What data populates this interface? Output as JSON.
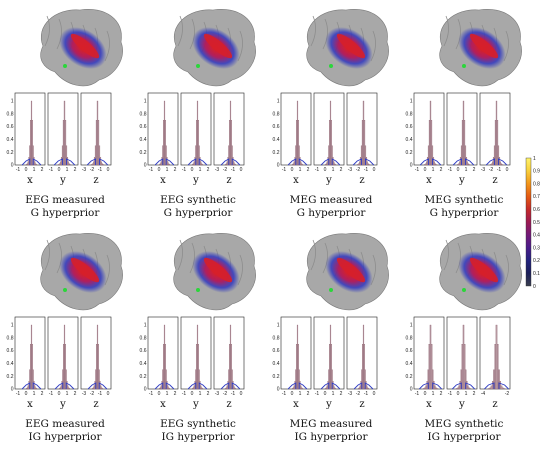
{
  "panels": [
    {
      "caption_line1": "EEG measured",
      "caption_line2": "G hyperprior",
      "xticks": [
        "-1",
        "0",
        "1",
        "2"
      ],
      "yticks": [
        "-1",
        "0",
        "1",
        "2"
      ],
      "zticks": [
        "-3",
        "-2",
        "-1",
        "0"
      ],
      "widths": [
        0.6,
        0.7,
        0.7
      ]
    },
    {
      "caption_line1": "EEG synthetic",
      "caption_line2": "G hyperprior",
      "xticks": [
        "-1",
        "0",
        "1",
        "2"
      ],
      "yticks": [
        "-1",
        "0",
        "1",
        "2"
      ],
      "zticks": [
        "-3",
        "-2",
        "-1",
        "0"
      ],
      "widths": [
        0.6,
        0.6,
        0.6
      ]
    },
    {
      "caption_line1": "MEG measured",
      "caption_line2": "G hyperprior",
      "xticks": [
        "-1",
        "0",
        "1",
        "2"
      ],
      "yticks": [
        "-1",
        "0",
        "1",
        "2"
      ],
      "zticks": [
        "-3",
        "-2",
        "-1",
        "0"
      ],
      "widths": [
        0.6,
        0.6,
        0.7
      ]
    },
    {
      "caption_line1": "MEG synthetic",
      "caption_line2": "G hyperprior",
      "xticks": [
        "-1",
        "0",
        "1",
        "2"
      ],
      "yticks": [
        "-1",
        "0",
        "1",
        "2"
      ],
      "zticks": [
        "-3",
        "-2",
        "-1",
        "0"
      ],
      "widths": [
        0.7,
        0.7,
        0.7
      ]
    },
    {
      "caption_line1": "EEG measured",
      "caption_line2": "IG hyperprior",
      "xticks": [
        "-1",
        "0",
        "1",
        "2"
      ],
      "yticks": [
        "-1",
        "0",
        "1",
        "2"
      ],
      "zticks": [
        "-3",
        "-2",
        "-1",
        "0"
      ],
      "widths": [
        0.6,
        0.6,
        0.6
      ]
    },
    {
      "caption_line1": "EEG synthetic",
      "caption_line2": "IG hyperprior",
      "xticks": [
        "-1",
        "0",
        "1",
        "2"
      ],
      "yticks": [
        "-1",
        "0",
        "1",
        "2"
      ],
      "zticks": [
        "-3",
        "-2",
        "-1",
        "0"
      ],
      "widths": [
        0.6,
        0.6,
        0.6
      ]
    },
    {
      "caption_line1": "MEG measured",
      "caption_line2": "IG hyperprior",
      "xticks": [
        "-1",
        "0",
        "1",
        "2"
      ],
      "yticks": [
        "-1",
        "0",
        "1",
        "2"
      ],
      "zticks": [
        "-3",
        "-2",
        "-1",
        "0"
      ],
      "widths": [
        0.6,
        0.6,
        0.6
      ]
    },
    {
      "caption_line1": "MEG synthetic",
      "caption_line2": "IG hyperprior",
      "xticks": [
        "-1",
        "0",
        "1",
        "2"
      ],
      "yticks": [
        "-1",
        "0",
        "1",
        "2"
      ],
      "zticks": [
        "-4",
        "-2"
      ],
      "widths": [
        0.8,
        0.8,
        0.9
      ]
    }
  ],
  "axis_labels": [
    "x",
    "y",
    "z"
  ],
  "y_ticks": [
    "0",
    "0.2",
    "0.4",
    "0.6",
    "0.8",
    "1"
  ],
  "colorbar": {
    "ticks": [
      "0",
      "0.1",
      "0.2",
      "0.3",
      "0.4",
      "0.5",
      "0.6",
      "0.7",
      "0.8",
      "0.9",
      "1"
    ],
    "colors": [
      "#3a3f4f",
      "#1c1f5a",
      "#23237f",
      "#4a1c8a",
      "#731a78",
      "#9c1a52",
      "#c52a2a",
      "#e45a13",
      "#f2961a",
      "#f8cf3c",
      "#fff36a"
    ]
  },
  "colors": {
    "hist_fill": "#b99aa3",
    "hist_edge": "#8a5f6d",
    "outer_blue": "#2f3cc4",
    "surface": "#a8a8a8"
  },
  "chart_data": {
    "type": "bar",
    "description_source": "histograms of posterior samples per coordinate, normalized to max 1",
    "bins": [
      -1.5,
      -1.25,
      -1,
      -0.75,
      -0.5,
      -0.25,
      0,
      0.25,
      0.5,
      0.75,
      1,
      1.25,
      1.5
    ],
    "series_profile": [
      0.01,
      0.02,
      0.05,
      0.12,
      0.3,
      0.7,
      1.0,
      0.7,
      0.3,
      0.12,
      0.05,
      0.02,
      0.01
    ],
    "ylim": [
      0,
      1
    ]
  }
}
